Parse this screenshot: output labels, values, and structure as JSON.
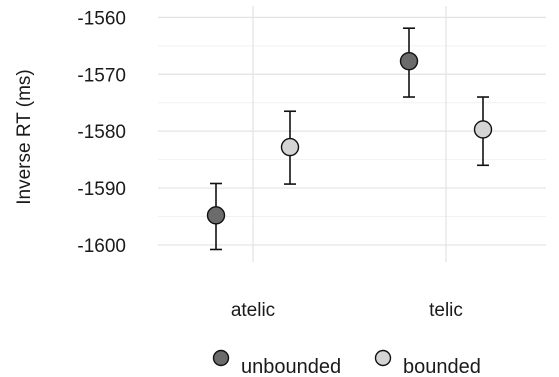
{
  "chart_data": {
    "type": "scatter",
    "ylabel": "Inverse RT (ms)",
    "xlabel": "",
    "categories": [
      "atelic",
      "telic"
    ],
    "ylim": [
      -1603,
      -1558
    ],
    "yticks": [
      -1560,
      -1570,
      -1580,
      -1590,
      -1600
    ],
    "grid": true,
    "legend_position": "bottom",
    "series": [
      {
        "name": "unbounded",
        "color": "#6b6b6b",
        "values": [
          -1594.8,
          -1567.7
        ],
        "error_low": [
          -1600.8,
          -1574.0
        ],
        "error_high": [
          -1589.2,
          -1561.9
        ]
      },
      {
        "name": "bounded",
        "color": "#d4d4d4",
        "values": [
          -1582.8,
          -1579.7
        ],
        "error_low": [
          -1589.3,
          -1586.0
        ],
        "error_high": [
          -1576.5,
          -1574.0
        ]
      }
    ]
  }
}
